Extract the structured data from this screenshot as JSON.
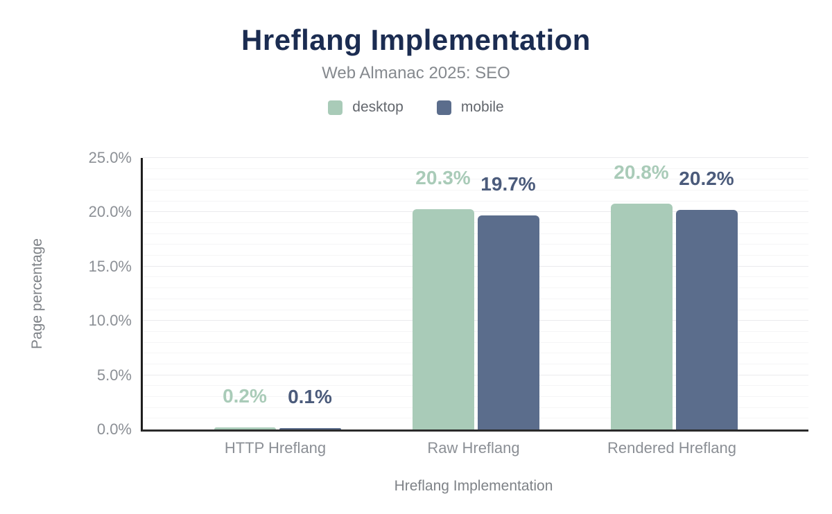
{
  "header": {
    "title": "Hreflang Implementation",
    "subtitle": "Web Almanac 2025: SEO"
  },
  "legend": [
    {
      "label": "desktop",
      "color": "#a9cbb8"
    },
    {
      "label": "mobile",
      "color": "#5b6d8c"
    }
  ],
  "colors": {
    "title_text": "#1b2c51",
    "subtitle_text": "#85898e",
    "axis_text": "#8b8f95",
    "axis_line": "#222222",
    "grid_minor": "#f5f5f6",
    "grid_major": "#eaeaed"
  },
  "chart_data": {
    "type": "bar",
    "title": "Hreflang Implementation",
    "subtitle": "Web Almanac 2025: SEO",
    "categories": [
      "HTTP Hreflang",
      "Raw Hreflang",
      "Rendered Hreflang"
    ],
    "series": [
      {
        "name": "desktop",
        "values": [
          0.2,
          20.3,
          20.8
        ],
        "labels": [
          "0.2%",
          "20.3%",
          "20.8%"
        ],
        "color": "#a9cbb8",
        "label_color": "#a9cbb8"
      },
      {
        "name": "mobile",
        "values": [
          0.1,
          19.7,
          20.2
        ],
        "labels": [
          "0.1%",
          "19.7%",
          "20.2%"
        ],
        "color": "#5b6d8c",
        "label_color": "#4b5b7b"
      }
    ],
    "xlabel": "Hreflang Implementation",
    "ylabel": "Page percentage",
    "ylim": [
      0,
      25
    ],
    "ytick_values": [
      0,
      5,
      10,
      15,
      20,
      25
    ],
    "ytick_labels": [
      "0.0%",
      "5.0%",
      "10.0%",
      "15.0%",
      "20.0%",
      "25.0%"
    ],
    "grid": "horizontal, minor every 1%, major every 5%",
    "legend_position": "top"
  }
}
